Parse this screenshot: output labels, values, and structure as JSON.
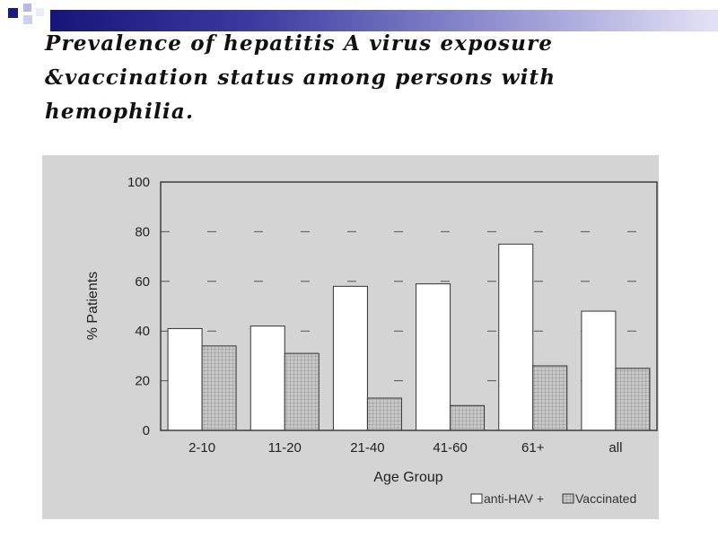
{
  "slide": {
    "title_line1": "Prevalence of hepatitis A virus exposure",
    "title_line2": "&vaccination status among persons with",
    "title_line3": "hemophilia."
  },
  "chart_data": {
    "type": "bar",
    "categories": [
      "2-10",
      "11-20",
      "21-40",
      "41-60",
      "61+",
      "all"
    ],
    "series": [
      {
        "name": "anti-HAV +",
        "values": [
          41,
          42,
          58,
          59,
          75,
          48
        ],
        "color": "#ffffff"
      },
      {
        "name": "Vaccinated",
        "values": [
          34,
          31,
          13,
          10,
          26,
          25
        ],
        "color": "#c8c8c8",
        "pattern": "grid"
      }
    ],
    "xlabel": "Age Group",
    "ylabel": "% Patients",
    "ylim": [
      0,
      100
    ],
    "yticks": [
      0,
      20,
      40,
      60,
      80,
      100
    ],
    "grid": "dashed horizontal",
    "legend_position": "bottom-right",
    "colors": {
      "panel_background": "#d4d4d4",
      "plot_background": "#d4d4d4",
      "axis": "#333333"
    }
  }
}
